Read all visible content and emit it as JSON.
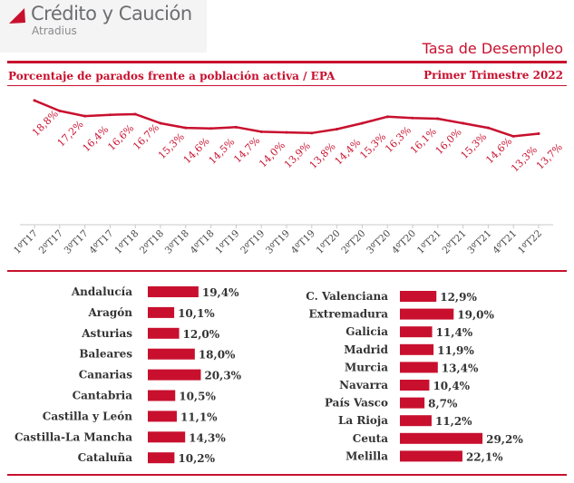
{
  "brand": {
    "name": "Crédito y Caución",
    "sub": "Atradius"
  },
  "header": {
    "title": "Tasa de Desempleo",
    "subtitle": "Porcentaje de parados frente a población activa / EPA",
    "period": "Primer Trimestre 2022"
  },
  "colors": {
    "accent": "#c8102e",
    "line": "#c8102e",
    "bar": "#c8102e",
    "text": "#333333"
  },
  "chart_data": [
    {
      "type": "line",
      "categories": [
        "1ºT17",
        "2ºT17",
        "3ºT17",
        "4ºT17",
        "1ºT18",
        "2ºT18",
        "3ºT18",
        "4ºT18",
        "1ºT19",
        "2ºT19",
        "3ºT19",
        "4ºT19",
        "1ºT20",
        "2ºT20",
        "3ºT20",
        "4ºT20",
        "1ºT21",
        "2ºT21",
        "3ºT21",
        "4ºT21",
        "1ºT22"
      ],
      "values": [
        18.8,
        17.2,
        16.4,
        16.6,
        16.7,
        15.3,
        14.6,
        14.5,
        14.7,
        14.0,
        13.9,
        13.8,
        14.4,
        15.3,
        16.3,
        16.1,
        16.0,
        15.3,
        14.6,
        13.3,
        13.7
      ],
      "labels": [
        "18,8%",
        "17,2%",
        "16,4%",
        "16,6%",
        "16,7%",
        "15,3%",
        "14,6%",
        "14,5%",
        "14,7%",
        "14,0%",
        "13,9%",
        "13,8%",
        "14,4%",
        "15,3%",
        "16,3%",
        "16,1%",
        "16,0%",
        "15,3%",
        "14,6%",
        "13,3%",
        "13,7%"
      ]
    },
    {
      "type": "bar",
      "orientation": "horizontal",
      "categories": [
        "Andalucía",
        "Aragón",
        "Asturias",
        "Baleares",
        "Canarias",
        "Cantabria",
        "Castilla y León",
        "Castilla-La Mancha",
        "Cataluña"
      ],
      "values": [
        19.4,
        10.1,
        12.0,
        18.0,
        20.3,
        10.5,
        11.1,
        14.3,
        10.2
      ],
      "labels": [
        "19,4%",
        "10,1%",
        "12,0%",
        "18,0%",
        "20,3%",
        "10,5%",
        "11,1%",
        "14,3%",
        "10,2%"
      ]
    },
    {
      "type": "bar",
      "orientation": "horizontal",
      "categories": [
        "C. Valenciana",
        "Extremadura",
        "Galicia",
        "Madrid",
        "Murcia",
        "Navarra",
        "País Vasco",
        "La Rioja",
        "Ceuta",
        "Melilla"
      ],
      "values": [
        12.9,
        19.0,
        11.4,
        11.9,
        13.4,
        10.4,
        8.7,
        11.2,
        29.2,
        22.1
      ],
      "labels": [
        "12,9%",
        "19,0%",
        "11,4%",
        "11,9%",
        "13,4%",
        "10,4%",
        "8,7%",
        "11,2%",
        "29,2%",
        "22,1%"
      ]
    }
  ]
}
